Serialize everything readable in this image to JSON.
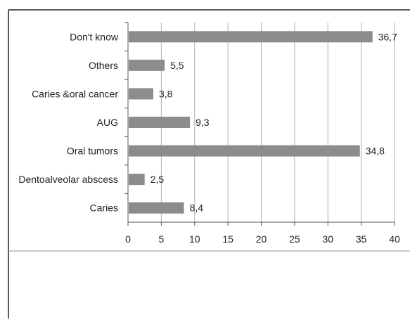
{
  "chart_data": {
    "type": "bar",
    "orientation": "horizontal",
    "categories": [
      "Don't know",
      "Others",
      "Caries &oral cancer",
      "AUG",
      "Oral tumors",
      "Dentoalveolar abscess",
      "Caries"
    ],
    "values": [
      36.7,
      5.5,
      3.8,
      9.3,
      34.8,
      2.5,
      8.4
    ],
    "value_labels": [
      "36,7",
      "5,5",
      "3,8",
      "9,3",
      "34,8",
      "2,5",
      "8,4"
    ],
    "title": "",
    "xlabel": "",
    "ylabel": "",
    "xlim": [
      0,
      40
    ],
    "xticks": [
      0,
      5,
      10,
      15,
      20,
      25,
      30,
      35,
      40
    ],
    "xtick_labels": [
      "0",
      "5",
      "10",
      "15",
      "20",
      "25",
      "30",
      "35",
      "40"
    ],
    "grid": "vertical",
    "legend": "none",
    "bar_color": "#8c8c8c",
    "grid_color": "#b0b0b0"
  }
}
